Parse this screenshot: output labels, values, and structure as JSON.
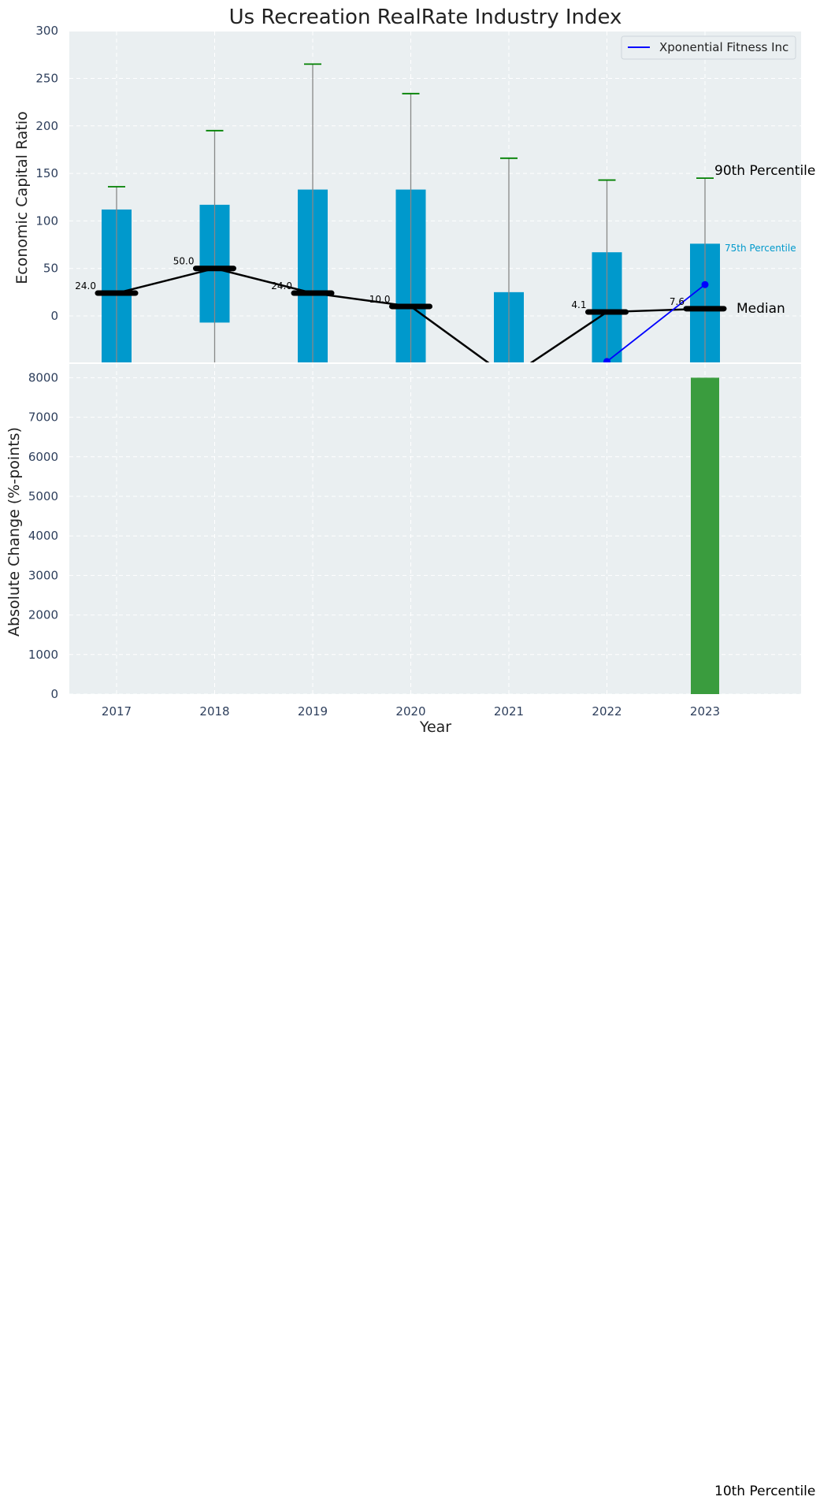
{
  "chart_data": [
    {
      "type": "bar",
      "title": "Us Recreation RealRate Industry Index",
      "ylabel": "Economic Capital Ratio",
      "ylim": [
        -50,
        300
      ],
      "yticks": [
        0,
        50,
        100,
        150,
        200,
        250,
        300
      ],
      "grid": true,
      "categories": [
        "2017",
        "2018",
        "2019",
        "2020",
        "2021",
        "2022",
        "2023"
      ],
      "series": [
        {
          "role": "p25",
          "values": [
            -60,
            -7,
            -60,
            -60,
            -60,
            -60,
            -60
          ]
        },
        {
          "role": "p75",
          "values": [
            112,
            117,
            133,
            133,
            25,
            67,
            76
          ]
        },
        {
          "role": "p10",
          "values": [
            -60,
            -60,
            -60,
            -60,
            -60,
            -60,
            -60
          ]
        },
        {
          "role": "p90",
          "values": [
            136,
            195,
            265,
            234,
            166,
            143,
            145
          ]
        },
        {
          "role": "median",
          "values": [
            24.0,
            50.0,
            24.0,
            10.0,
            -65.0,
            4.1,
            7.6
          ]
        },
        {
          "name": "Xponential Fitness Inc",
          "role": "company",
          "x": [
            "2022",
            "2023"
          ],
          "values": [
            -48,
            33
          ]
        }
      ],
      "median_labels": [
        "24.0",
        "50.0",
        "24.0",
        "10.0",
        "",
        "4.1",
        "7.6"
      ],
      "annotations": {
        "p90": "90th Percentile",
        "p75": "75th Percentile",
        "median": "Median",
        "p10": "10th Percentile"
      },
      "legend": {
        "placement": "top-right"
      },
      "colors": {
        "bar": "#0099cc",
        "median": "#000000",
        "company": "#0000ff",
        "whisker": "#888888",
        "cap": "#008000",
        "panel": "#eaeff1"
      }
    },
    {
      "type": "bar",
      "ylabel": "Absolute Change (%-points)",
      "xlabel": "Year",
      "ylim": [
        0,
        8200
      ],
      "yticks": [
        0,
        1000,
        2000,
        3000,
        4000,
        5000,
        6000,
        7000,
        8000
      ],
      "grid": true,
      "categories": [
        "2017",
        "2018",
        "2019",
        "2020",
        "2021",
        "2022",
        "2023"
      ],
      "values": [
        0,
        0,
        0,
        0,
        0,
        0,
        8000
      ],
      "colors": {
        "bar": "#3a9c3e"
      }
    }
  ]
}
